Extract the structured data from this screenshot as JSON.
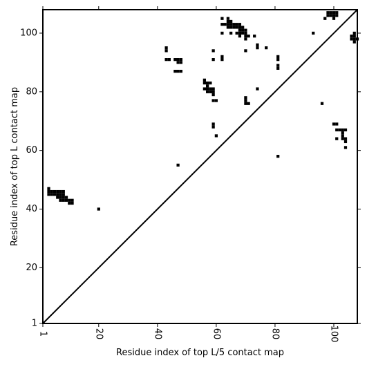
{
  "chart_data": {
    "type": "heatmap",
    "title": "",
    "xlabel": "Residue index of top L/5 contact map",
    "ylabel": "Residue index of top L contact map",
    "xlim": [
      1,
      108
    ],
    "ylim": [
      1,
      108
    ],
    "xticks": [
      1,
      20,
      40,
      60,
      80,
      100
    ],
    "yticks": [
      1,
      20,
      40,
      60,
      80,
      100
    ],
    "xtick_labels": [
      "1",
      "20",
      "40",
      "60",
      "80",
      "100"
    ],
    "ytick_labels": [
      "1",
      "20",
      "40",
      "60",
      "80",
      "100"
    ],
    "grid": false,
    "diagonal_line": true,
    "cell_color": "#000000",
    "upper_left_contacts": [
      [
        3,
        45
      ],
      [
        3,
        46
      ],
      [
        3,
        47
      ],
      [
        4,
        45
      ],
      [
        4,
        46
      ],
      [
        5,
        45
      ],
      [
        5,
        46
      ],
      [
        6,
        44
      ],
      [
        6,
        45
      ],
      [
        6,
        46
      ],
      [
        7,
        43
      ],
      [
        7,
        44
      ],
      [
        7,
        45
      ],
      [
        7,
        46
      ],
      [
        8,
        43
      ],
      [
        8,
        44
      ],
      [
        8,
        45
      ],
      [
        8,
        46
      ],
      [
        9,
        43
      ],
      [
        9,
        44
      ],
      [
        10,
        42
      ],
      [
        10,
        43
      ],
      [
        11,
        42
      ],
      [
        11,
        43
      ],
      [
        20,
        40
      ],
      [
        43,
        91
      ],
      [
        43,
        94
      ],
      [
        43,
        95
      ],
      [
        44,
        91
      ],
      [
        46,
        87
      ],
      [
        46,
        91
      ],
      [
        47,
        87
      ],
      [
        47,
        90
      ],
      [
        47,
        91
      ],
      [
        48,
        87
      ],
      [
        48,
        90
      ],
      [
        48,
        91
      ],
      [
        47,
        55
      ],
      [
        56,
        84
      ],
      [
        56,
        83
      ],
      [
        56,
        81
      ],
      [
        57,
        80
      ],
      [
        57,
        81
      ],
      [
        57,
        82
      ],
      [
        57,
        83
      ],
      [
        58,
        80
      ],
      [
        58,
        81
      ],
      [
        58,
        83
      ],
      [
        59,
        79
      ],
      [
        59,
        80
      ],
      [
        59,
        81
      ],
      [
        59,
        77
      ],
      [
        60,
        77
      ],
      [
        59,
        68
      ],
      [
        59,
        69
      ],
      [
        59,
        91
      ],
      [
        59,
        94
      ],
      [
        60,
        65
      ],
      [
        62,
        91
      ],
      [
        62,
        92
      ],
      [
        62,
        100
      ],
      [
        62,
        103
      ],
      [
        62,
        105
      ],
      [
        63,
        103
      ],
      [
        64,
        102
      ],
      [
        64,
        103
      ],
      [
        64,
        104
      ],
      [
        64,
        105
      ],
      [
        65,
        100
      ],
      [
        65,
        102
      ],
      [
        65,
        103
      ],
      [
        65,
        104
      ],
      [
        66,
        102
      ],
      [
        66,
        103
      ],
      [
        67,
        100
      ],
      [
        67,
        102
      ],
      [
        67,
        103
      ],
      [
        68,
        99
      ],
      [
        68,
        100
      ],
      [
        68,
        101
      ],
      [
        68,
        102
      ],
      [
        68,
        103
      ],
      [
        69,
        100
      ],
      [
        69,
        101
      ],
      [
        69,
        102
      ],
      [
        70,
        98
      ],
      [
        70,
        99
      ],
      [
        70,
        100
      ],
      [
        70,
        101
      ],
      [
        70,
        94
      ],
      [
        71,
        99
      ],
      [
        73,
        99
      ],
      [
        70,
        76
      ],
      [
        70,
        77
      ],
      [
        70,
        78
      ],
      [
        71,
        76
      ],
      [
        74,
        81
      ],
      [
        74,
        95
      ],
      [
        74,
        96
      ],
      [
        77,
        95
      ],
      [
        81,
        58
      ],
      [
        81,
        88
      ],
      [
        81,
        89
      ],
      [
        81,
        91
      ],
      [
        81,
        92
      ],
      [
        93,
        100
      ],
      [
        96,
        76
      ],
      [
        97,
        105
      ],
      [
        98,
        106
      ],
      [
        98,
        107
      ],
      [
        99,
        106
      ],
      [
        99,
        107
      ],
      [
        100,
        105
      ],
      [
        100,
        106
      ],
      [
        100,
        107
      ],
      [
        101,
        106
      ],
      [
        101,
        107
      ],
      [
        100,
        69
      ],
      [
        101,
        69
      ],
      [
        101,
        64
      ],
      [
        101,
        67
      ],
      [
        102,
        67
      ],
      [
        103,
        64
      ],
      [
        103,
        65
      ],
      [
        103,
        66
      ],
      [
        103,
        67
      ],
      [
        104,
        63
      ],
      [
        104,
        61
      ],
      [
        104,
        64
      ],
      [
        104,
        67
      ],
      [
        106,
        98
      ],
      [
        106,
        99
      ],
      [
        107,
        97
      ],
      [
        107,
        98
      ],
      [
        107,
        99
      ],
      [
        107,
        100
      ],
      [
        108,
        98
      ]
    ]
  }
}
